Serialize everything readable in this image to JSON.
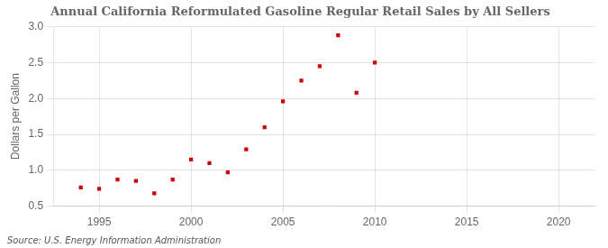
{
  "chart_data": {
    "type": "scatter",
    "title": "Annual California Reformulated Gasoline Regular Retail Sales by All Sellers",
    "ylabel": "Dollars per Gallon",
    "annotations": [
      "Source: U.S. Energy Information Administration"
    ],
    "x": [
      1994,
      1995,
      1996,
      1997,
      1998,
      1999,
      2000,
      2001,
      2002,
      2003,
      2004,
      2005,
      2006,
      2007,
      2008,
      2009,
      2010
    ],
    "values": [
      0.76,
      0.74,
      0.87,
      0.85,
      0.68,
      0.87,
      1.15,
      1.1,
      0.97,
      1.29,
      1.6,
      1.96,
      2.25,
      2.45,
      2.88,
      2.08,
      2.5
    ],
    "color": "#CC0000",
    "marker": "square",
    "xlim": [
      1992.5,
      2022
    ],
    "ylim": [
      0.5,
      3.0
    ],
    "xticks": [
      1995,
      2000,
      2005,
      2010,
      2015,
      2020
    ],
    "yticks": [
      0.5,
      {
        "value": 1.0,
        "label": "1.0"
      },
      1.5,
      {
        "value": 2.0,
        "label": "2.0"
      },
      2.5,
      {
        "value": 3.0,
        "label": "3.0"
      }
    ],
    "grid": true
  }
}
